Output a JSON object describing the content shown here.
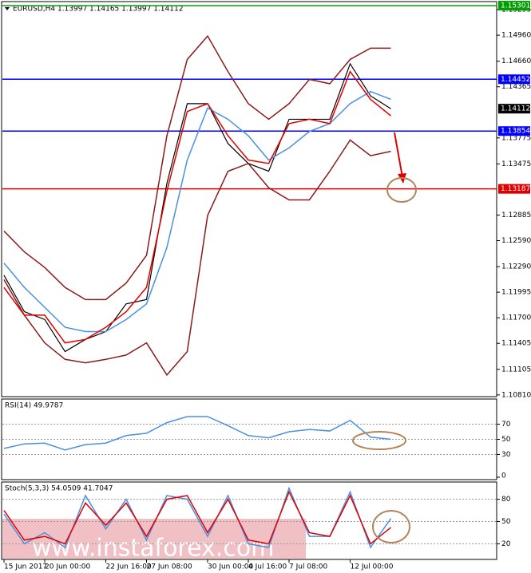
{
  "chart_data": [
    {
      "type": "line",
      "title": "EURUSD,H4  1.13997 1.14165 1.13997 1.14112",
      "categories": [
        "15 Jun 2017",
        null,
        "20 Jun 00:00",
        null,
        null,
        "22 Jun 16:00",
        null,
        "27 Jun 08:00",
        null,
        null,
        "30 Jun 00:00",
        null,
        "4 Jul 16:00",
        null,
        "7 Jul 08:00",
        null,
        null,
        "12 Jul 00:00",
        null,
        null
      ],
      "ylim": [
        1.1079,
        1.1532
      ],
      "yticks": [
        1.15255,
        {
          "value": 1.1496,
          "label": "1.14960"
        },
        {
          "value": 1.1466,
          "label": "1.14660"
        },
        1.14365,
        1.13775,
        1.13475,
        1.12885,
        {
          "value": 1.1259,
          "label": "1.12590"
        },
        {
          "value": 1.1229,
          "label": "1.12290"
        },
        1.11995,
        {
          "value": 1.117,
          "label": "1.11700"
        },
        1.11405,
        1.11105,
        {
          "value": 1.1081,
          "label": "1.10810"
        }
      ],
      "grid": false,
      "series": [
        {
          "color": "#000000",
          "values": [
            1.1219,
            1.1177,
            1.1168,
            1.1131,
            1.1145,
            1.1154,
            1.1186,
            1.1191,
            1.1325,
            1.1417,
            1.1417,
            1.1371,
            1.1348,
            1.1339,
            1.1399,
            1.1399,
            1.1399,
            1.1463,
            1.1426,
            1.14112
          ]
        },
        {
          "color": "#8b1a1a",
          "values": [
            1.127,
            1.1246,
            1.1228,
            1.1205,
            1.1191,
            1.1191,
            1.121,
            1.1242,
            1.138,
            1.1468,
            1.1495,
            1.1454,
            1.1417,
            1.1399,
            1.1417,
            1.1445,
            1.144,
            1.1468,
            1.1481,
            1.1481
          ]
        },
        {
          "color": "#8b1a1a",
          "values": [
            1.1214,
            1.1173,
            1.1141,
            1.1122,
            1.1118,
            1.1122,
            1.1127,
            1.1141,
            1.1104,
            1.1131,
            1.1288,
            1.1339,
            1.1348,
            1.132,
            1.1306,
            1.1306,
            1.1339,
            1.1375,
            1.1357,
            1.1362
          ]
        },
        {
          "color": "#4a90e2",
          "values": [
            1.1233,
            1.1205,
            1.1182,
            1.1159,
            1.1154,
            1.1154,
            1.1168,
            1.1186,
            1.1251,
            1.1352,
            1.1412,
            1.1399,
            1.138,
            1.1352,
            1.1366,
            1.1385,
            1.1394,
            1.1417,
            1.1431,
            1.1422
          ]
        },
        {
          "color": "#e00000",
          "values": [
            1.1205,
            1.1173,
            1.1173,
            1.1141,
            1.1145,
            1.1159,
            1.1177,
            1.1205,
            1.1316,
            1.1408,
            1.1417,
            1.138,
            1.1352,
            1.1348,
            1.1394,
            1.1399,
            1.1394,
            1.1454,
            1.1422,
            1.1403
          ]
        }
      ],
      "hlines": [
        {
          "value": 1.15301,
          "color": "#00a000"
        },
        {
          "value": 1.14452,
          "color": "#0000ff"
        },
        {
          "value": 1.13854,
          "color": "#0000ff"
        },
        {
          "value": 1.13187,
          "color": "#e00000"
        }
      ],
      "last_price": 1.14112
    },
    {
      "type": "line",
      "title": "RSI(14) 49.9787",
      "ylim": [
        0,
        100
      ],
      "yticks": [
        0,
        30,
        50,
        70
      ],
      "series": [
        {
          "color": "#4a90e2",
          "values": [
            38,
            44,
            45,
            36,
            43,
            45,
            55,
            58,
            72,
            80,
            80,
            68,
            55,
            52,
            60,
            63,
            61,
            75,
            53,
            50
          ]
        }
      ]
    },
    {
      "type": "line",
      "title": "Stoch(5,3,3) 54.0509 41.7047",
      "ylim": [
        0,
        100
      ],
      "yticks": [
        20,
        50,
        80
      ],
      "series": [
        {
          "color": "#4a90e2",
          "values": [
            60,
            20,
            35,
            15,
            85,
            40,
            80,
            25,
            85,
            80,
            30,
            85,
            20,
            15,
            95,
            30,
            30,
            90,
            15,
            54
          ]
        },
        {
          "color": "#e00000",
          "values": [
            65,
            25,
            30,
            20,
            75,
            45,
            75,
            30,
            80,
            85,
            35,
            80,
            25,
            20,
            90,
            35,
            30,
            85,
            20,
            42
          ]
        }
      ]
    }
  ],
  "watermark": "www.instaforex.com"
}
